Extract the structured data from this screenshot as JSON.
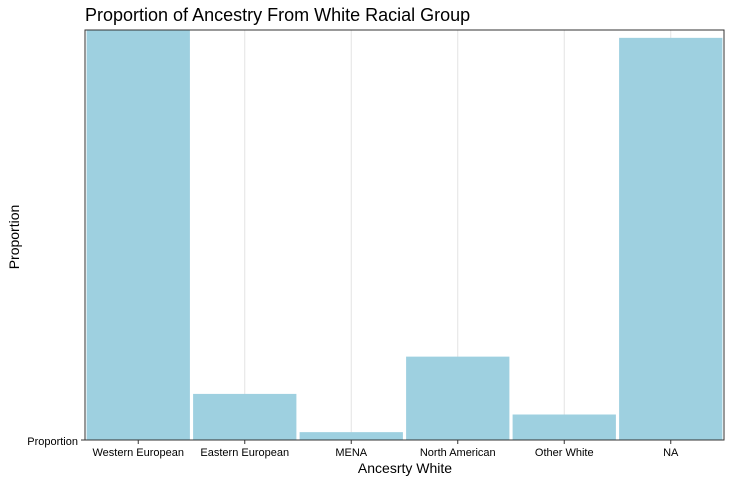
{
  "chart_data": {
    "type": "bar",
    "title": "Proportion of Ancestry From White Racial Group",
    "xlabel": "Ancesrty White",
    "ylabel": "Proportion",
    "y_tick_label": "Proportion",
    "categories": [
      "Western European",
      "Eastern European",
      "MENA",
      "North American",
      "Other White",
      "NA"
    ],
    "values": [
      0.418,
      0.047,
      0.008,
      0.085,
      0.026,
      0.41
    ],
    "ylim": [
      0,
      0.418
    ],
    "bar_color": "#9ED0E0",
    "grid": "vertical major lines",
    "legend": "none"
  }
}
